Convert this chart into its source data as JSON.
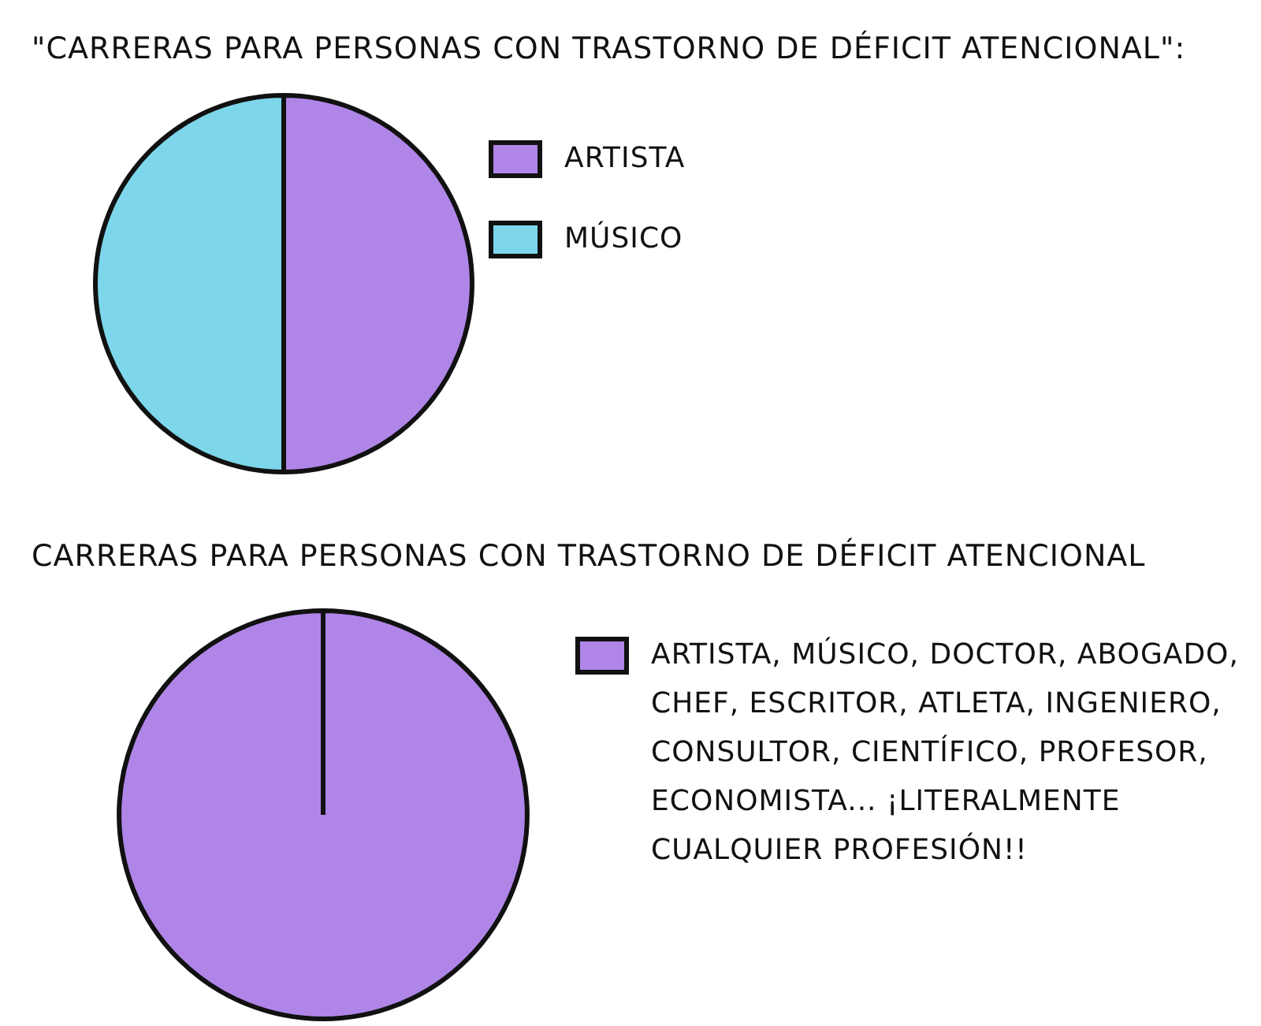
{
  "chart_data": [
    {
      "type": "pie",
      "title": "\"CARRERAS PARA PERSONAS CON TRASTORNO DE DÉFICIT ATENCIONAL\":",
      "categories": [
        "ARTISTA",
        "MÚSICO"
      ],
      "values": [
        50,
        50
      ],
      "colors": [
        "#b085e8",
        "#7dd6ea"
      ],
      "legend": "right"
    },
    {
      "type": "pie",
      "title": "CARRERAS PARA PERSONAS CON TRASTORNO DE DÉFICIT ATENCIONAL",
      "categories": [
        "ARTISTA, MÚSICO, DOCTOR, ABOGADO, CHEF, ESCRITOR, ATLETA, INGENIERO, CONSULTOR, CIENTÍFICO, PROFESOR, ECONOMISTA... ¡LITERALMENTE CUALQUIER PROFESIÓN!!"
      ],
      "values": [
        100
      ],
      "colors": [
        "#b085e8"
      ],
      "legend": "right"
    }
  ]
}
